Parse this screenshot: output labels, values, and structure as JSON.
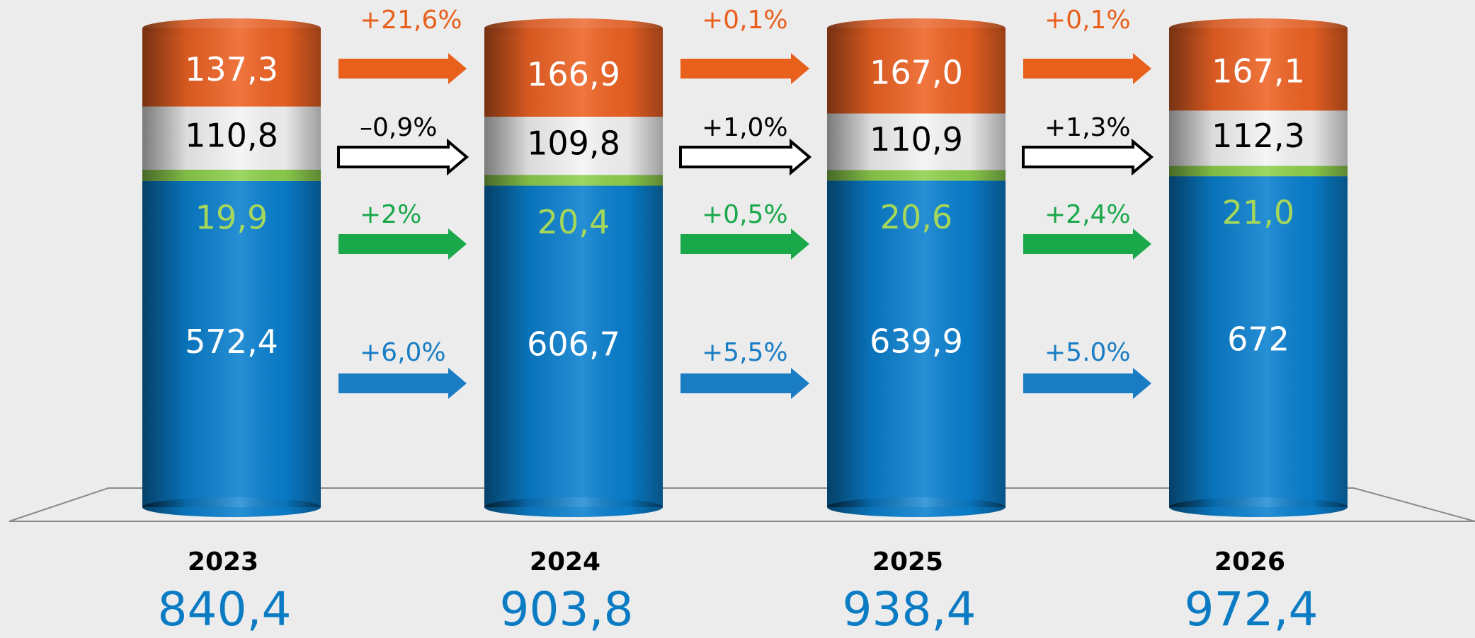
{
  "chart_data": {
    "type": "stacked-cylinder",
    "categories": [
      "2023",
      "2024",
      "2025",
      "2026"
    ],
    "totals": [
      840.4,
      903.8,
      938.4,
      972.4
    ],
    "total_labels": [
      "840,4",
      "903,8",
      "938,4",
      "972,4"
    ],
    "total_color": "#0b7cc4",
    "series": [
      {
        "color": "#0a80cf",
        "label_color": "#ffffff",
        "change_color": "#1a7dc4",
        "values": [
          572.4,
          606.7,
          639.9,
          672
        ],
        "value_labels": [
          "572,4",
          "606,7",
          "639,9",
          "672"
        ],
        "changes": [
          "+6,0%",
          "+5,5%",
          "+5.0%"
        ]
      },
      {
        "color": "#8fd04e",
        "label_color": "#a5d85a",
        "change_color": "#1aa84a",
        "values": [
          19.9,
          20.4,
          20.6,
          21.0
        ],
        "value_labels": [
          "19,9",
          "20,4",
          "20,6",
          "21,0"
        ],
        "changes": [
          "+2%",
          "+0,5%",
          "+2,4%"
        ]
      },
      {
        "color": "#f4f4f4",
        "label_color": "#000000",
        "change_color": "#000000",
        "values": [
          110.8,
          109.8,
          110.9,
          112.3
        ],
        "value_labels": [
          "110,8",
          "109,8",
          "110,9",
          "112,3"
        ],
        "changes": [
          "–0,9%",
          "+1,0%",
          "+1,3%"
        ]
      },
      {
        "color": "#ee6324",
        "label_color": "#ffffff",
        "change_color": "#e8601c",
        "values": [
          137.3,
          166.9,
          167.0,
          167.1
        ],
        "value_labels": [
          "137,3",
          "166,9",
          "167,0",
          "167,1"
        ],
        "changes": [
          "+21,6%",
          "+0,1%",
          "+0,1%"
        ]
      }
    ]
  }
}
